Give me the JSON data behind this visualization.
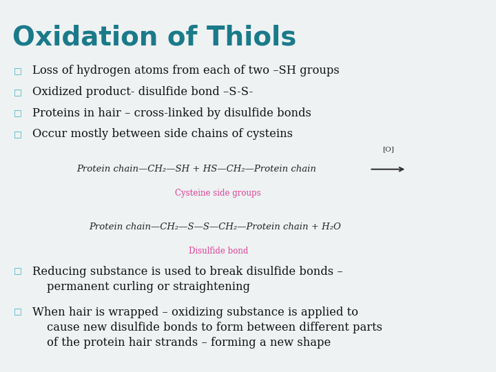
{
  "title": "Oxidation of Thiols",
  "title_color": "#1a7a8a",
  "title_fontsize": 28,
  "background_color": "#eef2f2",
  "bullet_color": "#40b0c0",
  "text_color": "#111111",
  "bullet_char": "□",
  "bullets": [
    "Loss of hydrogen atoms from each of two –SH groups",
    "Oxidized product- disulfide bond –S-S-",
    "Proteins in hair – cross-linked by disulfide bonds",
    "Occur mostly between side chains of cysteins"
  ],
  "eq1_label": "Cysteine side groups",
  "eq2_label": "Disulfide bond",
  "label_color": "#e0409a",
  "ox_text": "[O]",
  "bottom_bullets": [
    "Reducing substance is used to break disulfide bonds –\n    permanent curling or straightening",
    "When hair is wrapped – oxidizing substance is applied to\n    cause new disulfide bonds to form between different parts\n    of the protein hair strands – forming a new shape"
  ]
}
